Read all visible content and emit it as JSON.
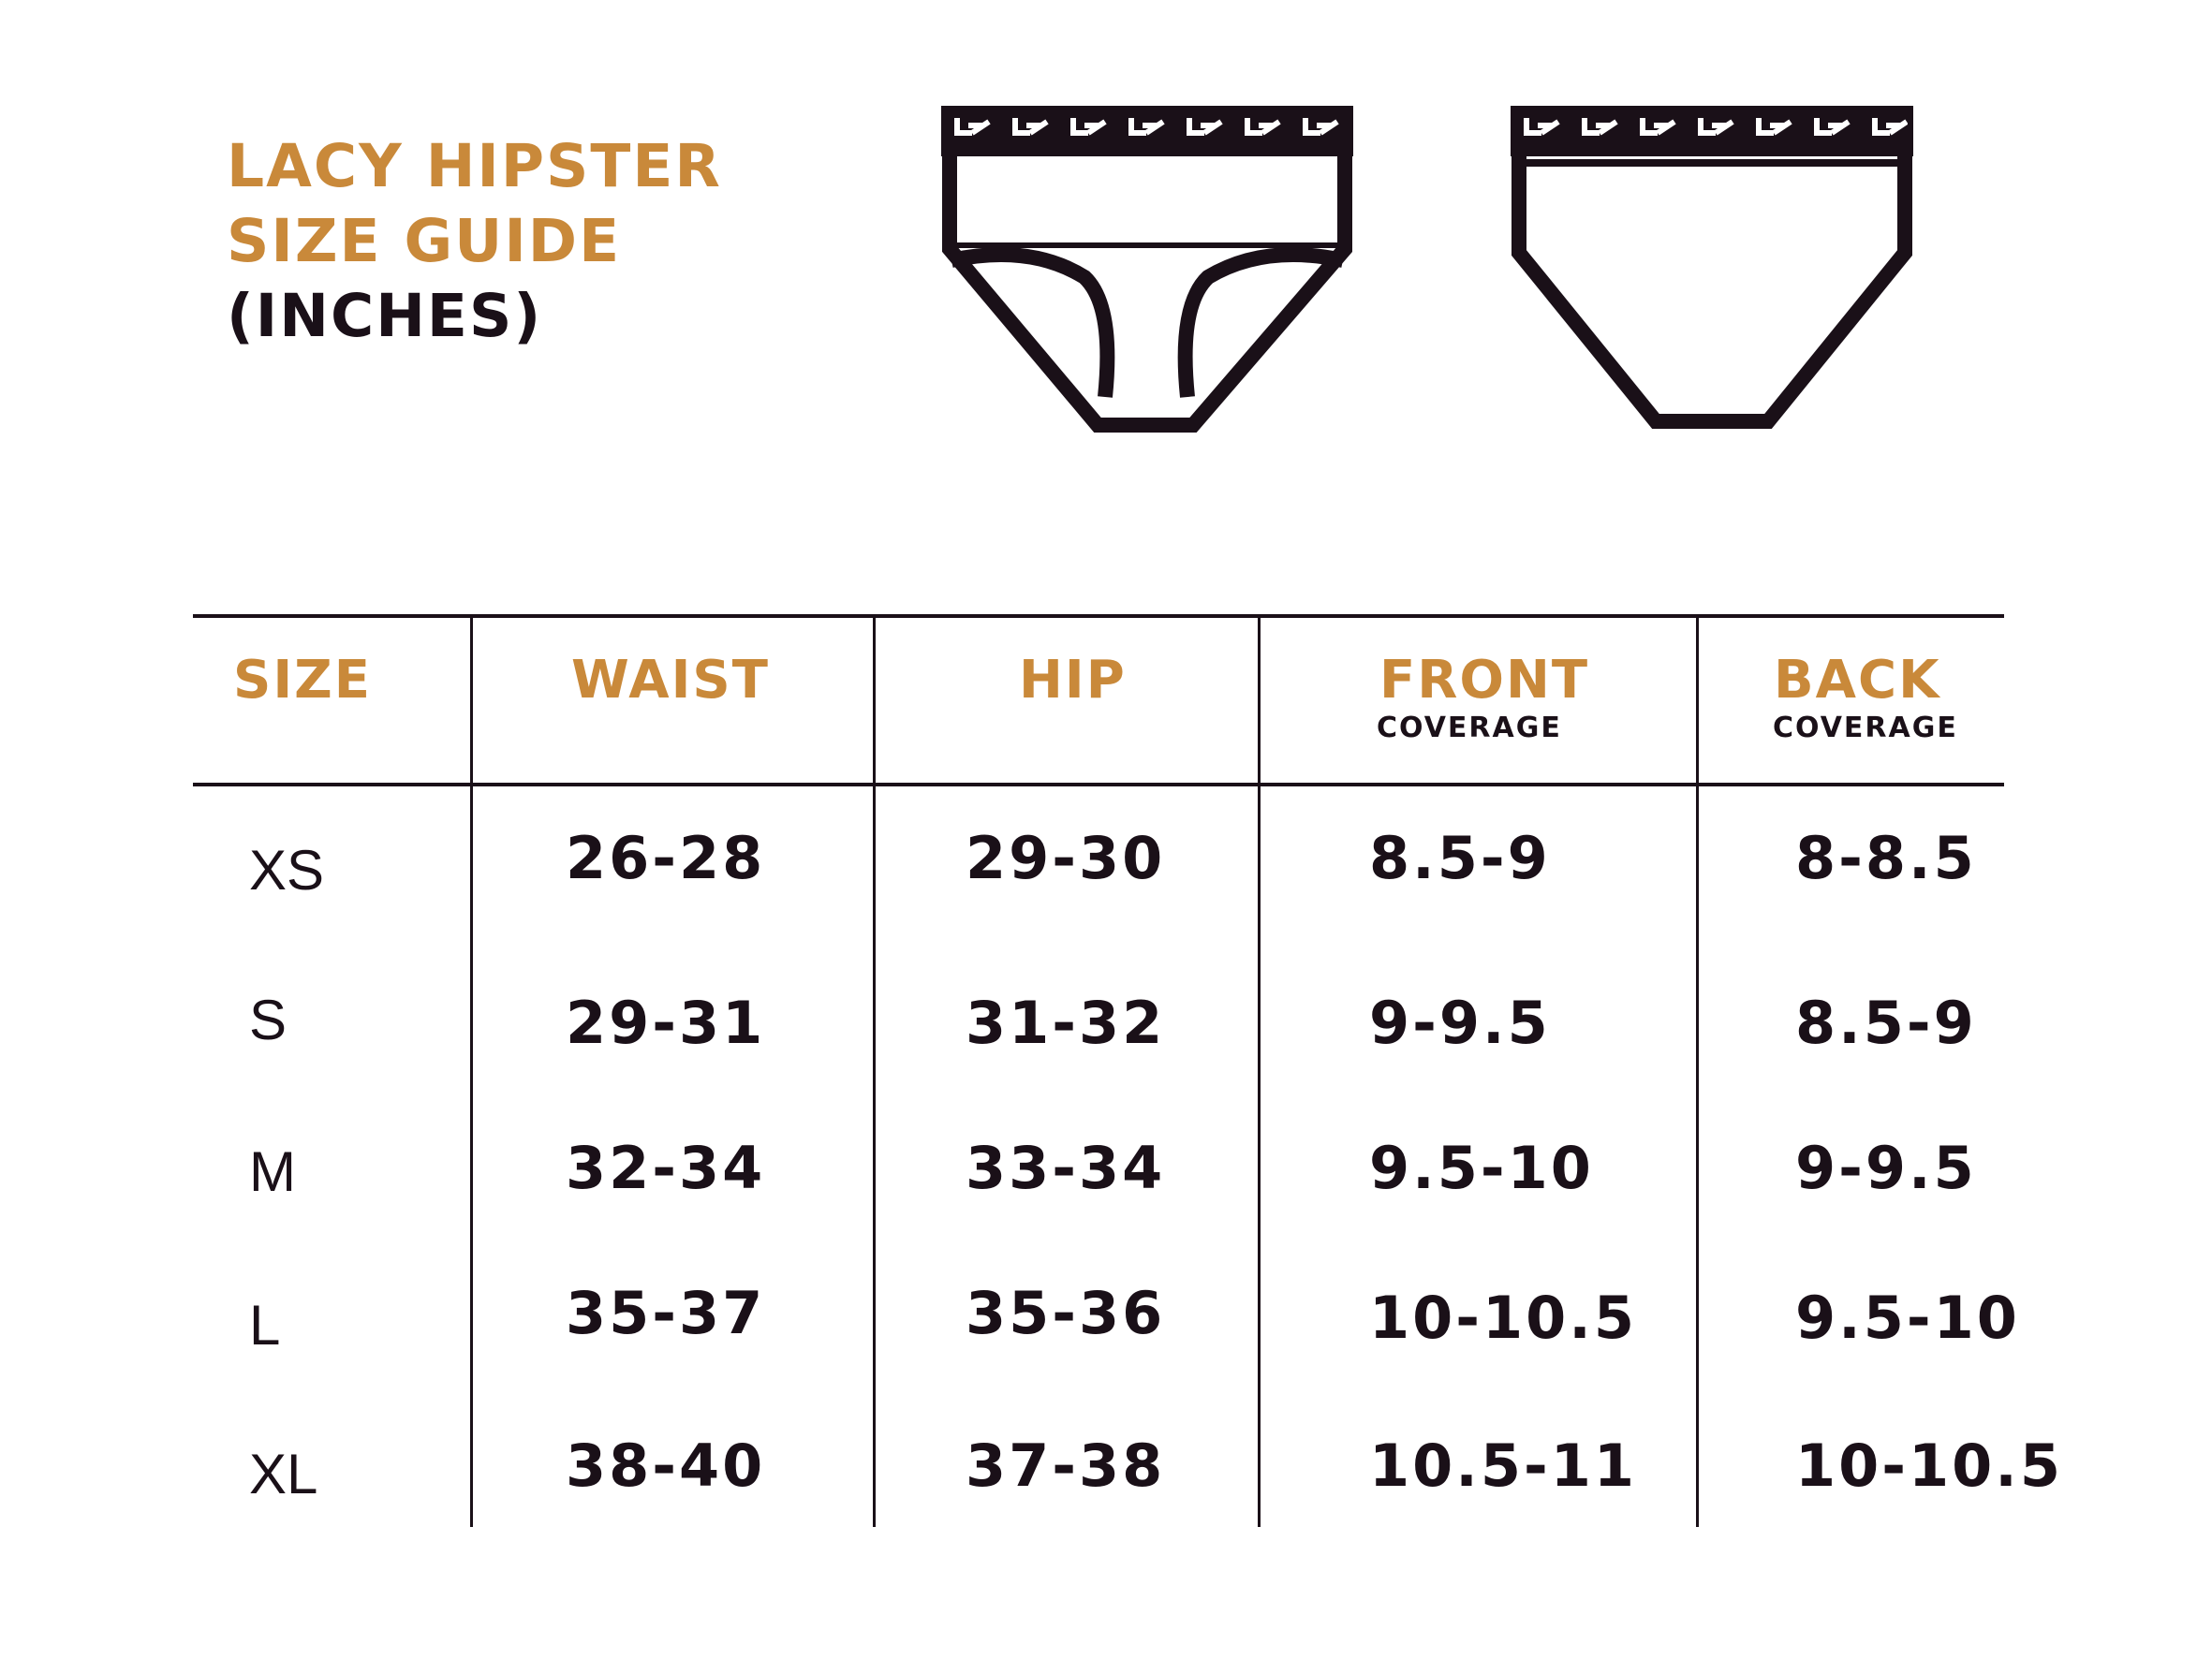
{
  "title": {
    "line1": "LACY HIPSTER",
    "line2": "SIZE GUIDE",
    "line3": "(INCHES)"
  },
  "illustrations": {
    "front": "underwear-front-icon",
    "back": "underwear-back-icon"
  },
  "colors": {
    "accent": "#c9893a",
    "ink": "#1a1018",
    "background": "#ffffff"
  },
  "table": {
    "headers": {
      "size": "SIZE",
      "waist": "WAIST",
      "hip": "HIP",
      "front": "FRONT",
      "front_sub": "COVERAGE",
      "back": "BACK",
      "back_sub": "COVERAGE"
    },
    "rows": [
      {
        "size": "XS",
        "waist": "26-28",
        "hip": "29-30",
        "front": "8.5-9",
        "back": "8-8.5"
      },
      {
        "size": "S",
        "waist": "29-31",
        "hip": "31-32",
        "front": "9-9.5",
        "back": "8.5-9"
      },
      {
        "size": "M",
        "waist": "32-34",
        "hip": "33-34",
        "front": "9.5-10",
        "back": "9-9.5"
      },
      {
        "size": "L",
        "waist": "35-37",
        "hip": "35-36",
        "front": "10-10.5",
        "back": "9.5-10"
      },
      {
        "size": "XL",
        "waist": "38-40",
        "hip": "37-38",
        "front": "10.5-11",
        "back": "10-10.5"
      }
    ]
  }
}
